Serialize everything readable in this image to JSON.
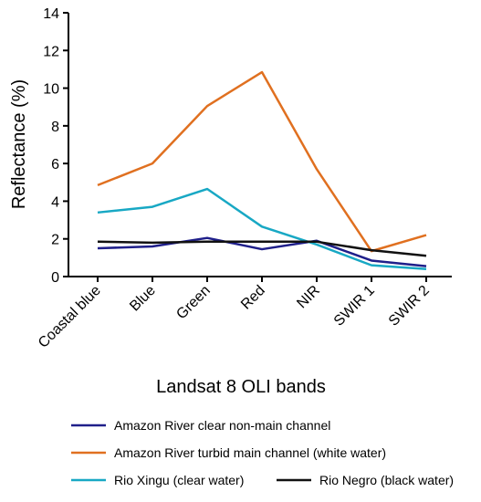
{
  "chart_data": {
    "type": "line",
    "title": "",
    "xlabel": "Landsat 8 OLI bands",
    "ylabel": "Reflectance (%)",
    "categories": [
      "Coastal blue",
      "Blue",
      "Green",
      "Red",
      "NIR",
      "SWIR 1",
      "SWIR 2"
    ],
    "ylim": [
      0,
      14
    ],
    "yticks": [
      "0",
      "2",
      "4",
      "6",
      "8",
      "10",
      "12",
      "14"
    ],
    "grid": false,
    "legend_position": "bottom",
    "series": [
      {
        "name": "Amazon River clear non-main channel",
        "color": "#1f1f8a",
        "values": [
          1.5,
          1.6,
          2.05,
          1.45,
          1.9,
          0.85,
          0.55
        ]
      },
      {
        "name": "Amazon River turbid main channel (white water)",
        "color": "#e07020",
        "values": [
          4.85,
          6.0,
          9.05,
          10.85,
          5.7,
          1.35,
          2.2
        ]
      },
      {
        "name": "Rio Xingu (clear water)",
        "color": "#18a8c4",
        "values": [
          3.4,
          3.7,
          4.65,
          2.65,
          1.7,
          0.6,
          0.4
        ]
      },
      {
        "name": "Rio Negro (black water)",
        "color": "#111111",
        "values": [
          1.85,
          1.8,
          1.85,
          1.85,
          1.85,
          1.4,
          1.1
        ]
      }
    ]
  }
}
